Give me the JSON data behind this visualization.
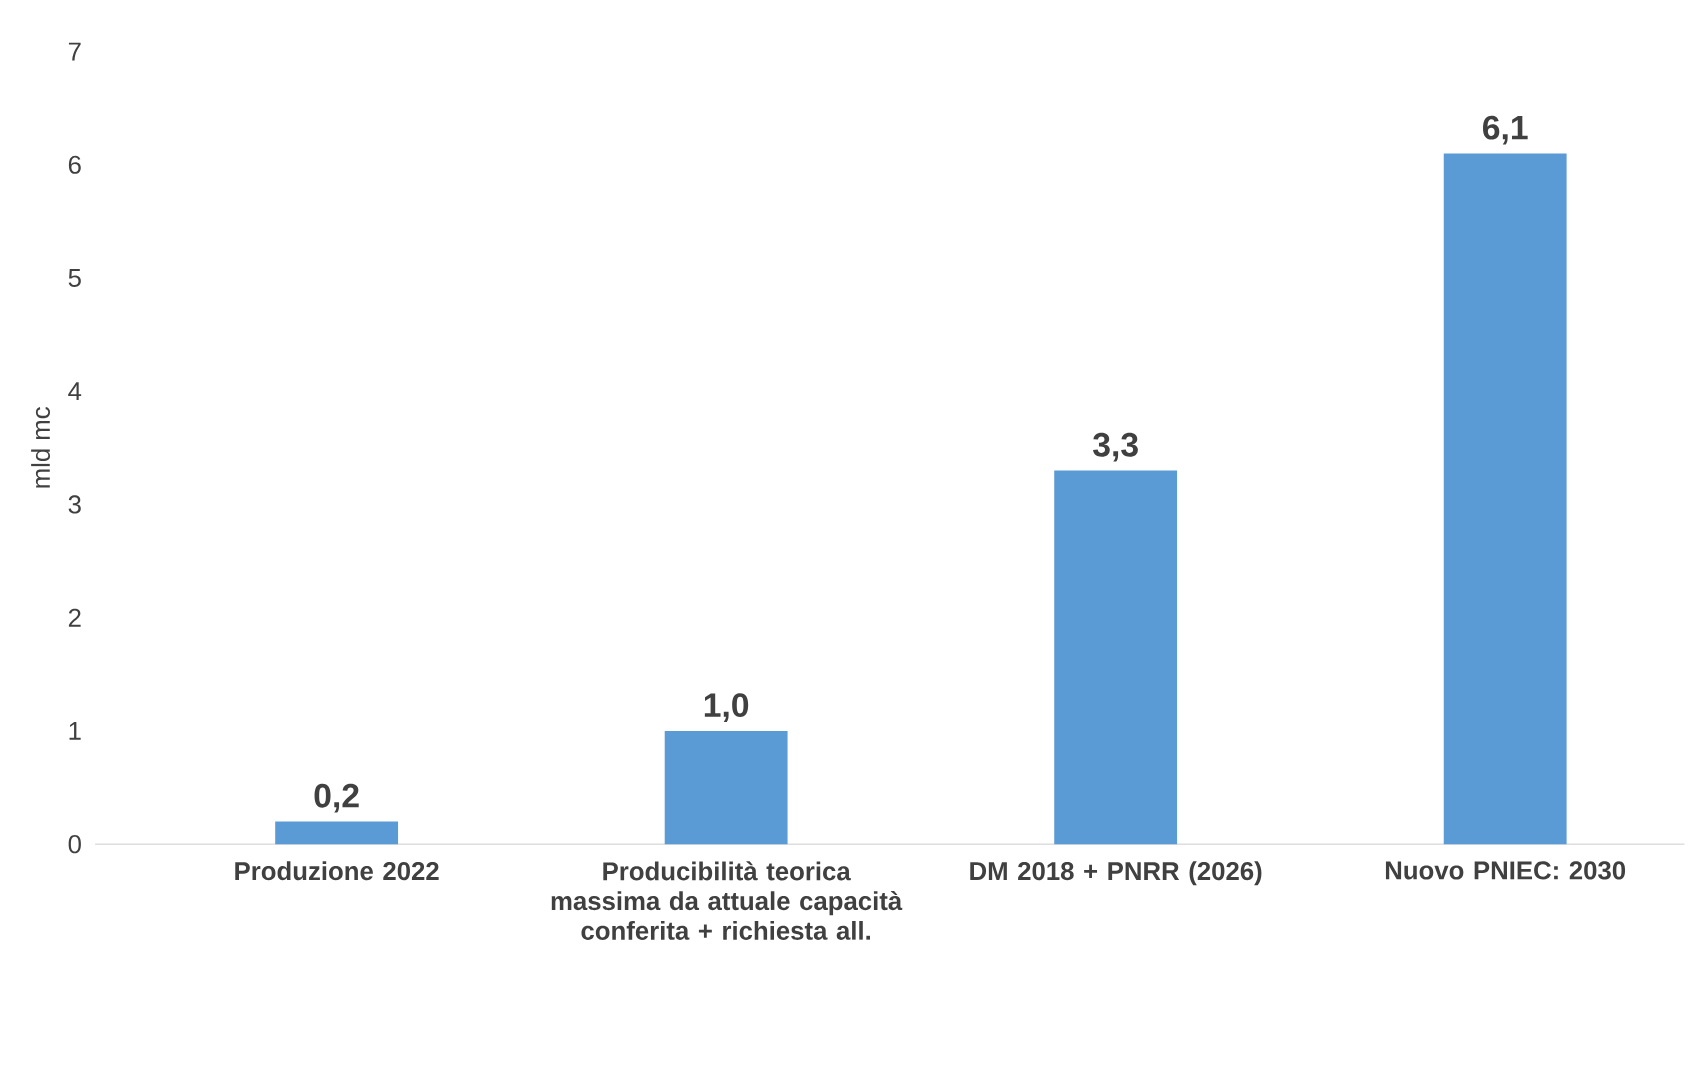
{
  "chart_data": {
    "type": "bar",
    "categories": [
      "Produzione 2022",
      "Producibilità teorica massima da attuale capacità conferita + richiesta all.",
      "DM 2018 + PNRR (2026)",
      "Nuovo PNIEC: 2030"
    ],
    "values": [
      0.2,
      1.0,
      3.3,
      6.1
    ],
    "value_labels": [
      "0,2",
      "1,0",
      "3,3",
      "6,1"
    ],
    "color": "#5b9bd5",
    "ylabel": "mld mc",
    "ylim": [
      0,
      7
    ],
    "yticks": [
      0,
      1,
      2,
      3,
      4,
      5,
      6,
      7
    ]
  }
}
